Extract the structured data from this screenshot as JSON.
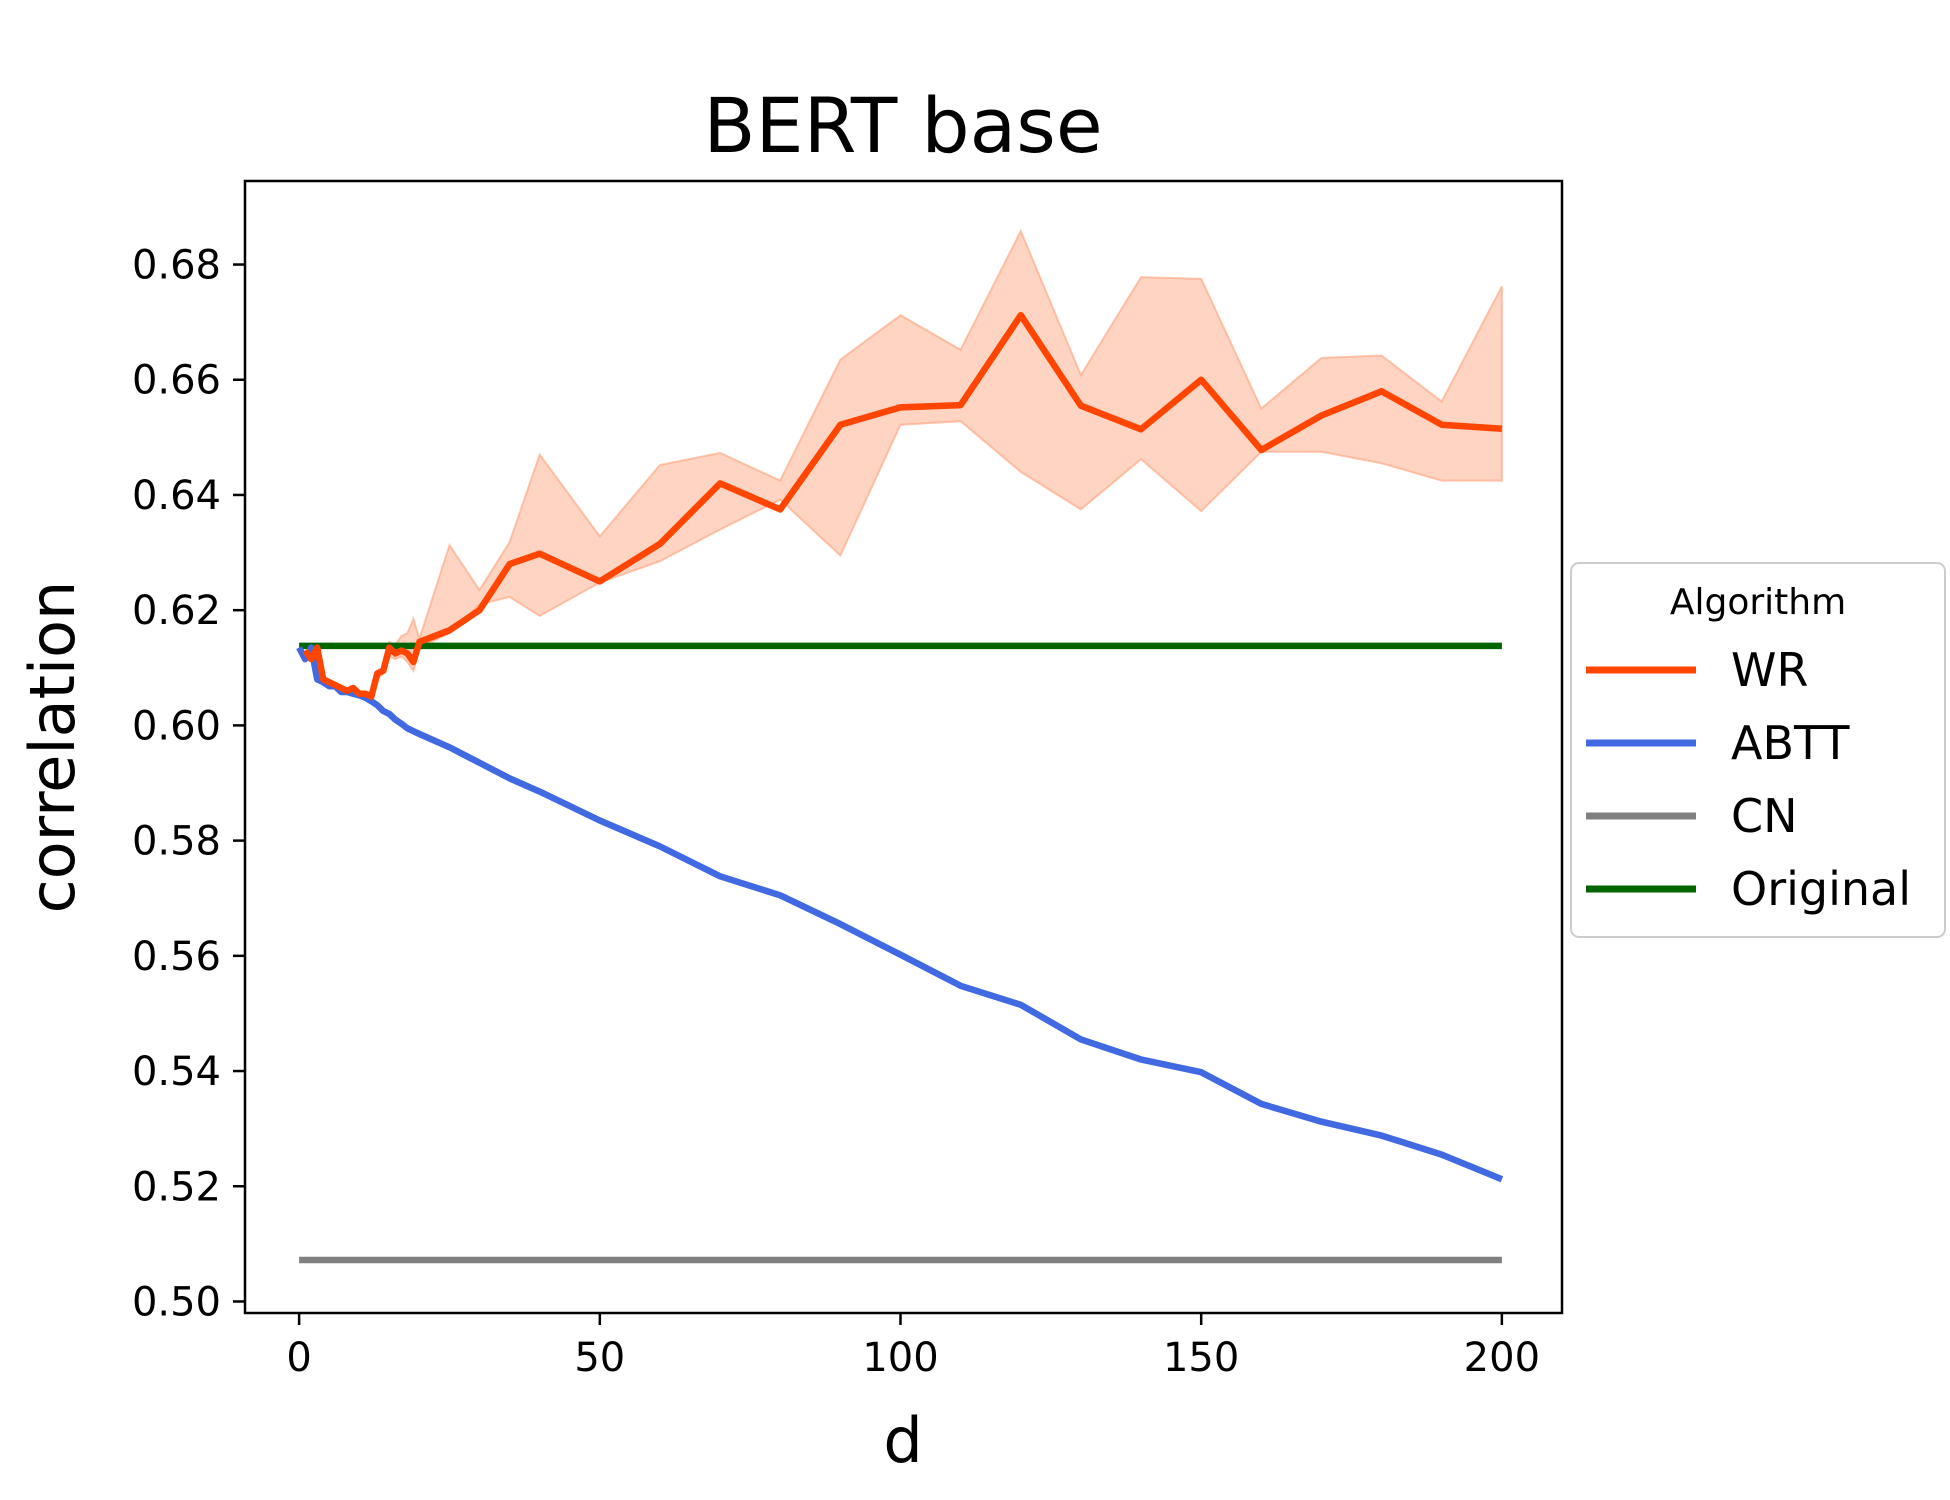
{
  "chart_data": {
    "type": "line",
    "title": "BERT base",
    "xlabel": "d",
    "ylabel": "correlation",
    "xlim": [
      -9,
      210
    ],
    "ylim": [
      0.498,
      0.6945
    ],
    "xticks": [
      0,
      50,
      100,
      150,
      200
    ],
    "yticks": [
      0.5,
      0.52,
      0.54,
      0.56,
      0.58,
      0.6,
      0.62,
      0.64,
      0.66,
      0.68
    ],
    "ytick_labels": [
      "0.50",
      "0.52",
      "0.54",
      "0.56",
      "0.58",
      "0.60",
      "0.62",
      "0.64",
      "0.66",
      "0.68"
    ],
    "xtick_labels": [
      "0",
      "50",
      "100",
      "150",
      "200"
    ],
    "legend": {
      "title": "Algorithm",
      "placement": "outside-right",
      "entries": [
        "WR",
        "ABTT",
        "CN",
        "Original"
      ]
    },
    "series": [
      {
        "name": "WR",
        "color": "#ff4500",
        "band_color": "#ffa07a",
        "x": [
          1,
          2,
          3,
          4,
          5,
          6,
          7,
          8,
          9,
          10,
          11,
          12,
          13,
          14,
          15,
          16,
          17,
          18,
          19,
          20,
          25,
          30,
          35,
          40,
          50,
          60,
          70,
          80,
          90,
          100,
          110,
          120,
          130,
          140,
          150,
          160,
          170,
          180,
          190,
          200
        ],
        "values": [
          0.613,
          0.6115,
          0.6135,
          0.608,
          0.6075,
          0.607,
          0.6065,
          0.606,
          0.6065,
          0.6055,
          0.6055,
          0.605,
          0.609,
          0.6095,
          0.6135,
          0.6125,
          0.613,
          0.6125,
          0.611,
          0.6145,
          0.6165,
          0.62,
          0.628,
          0.6298,
          0.625,
          0.6315,
          0.642,
          0.6375,
          0.6522,
          0.6552,
          0.6556,
          0.6712,
          0.6555,
          0.6514,
          0.66,
          0.6478,
          0.6538,
          0.658,
          0.6522,
          0.6515
        ],
        "lower": [
          0.613,
          0.6115,
          0.6135,
          0.608,
          0.6075,
          0.607,
          0.6065,
          0.606,
          0.6065,
          0.6055,
          0.6055,
          0.605,
          0.608,
          0.609,
          0.612,
          0.6115,
          0.612,
          0.611,
          0.6095,
          0.6135,
          0.616,
          0.621,
          0.6223,
          0.619,
          0.6248,
          0.6285,
          0.634,
          0.6392,
          0.6295,
          0.6522,
          0.6528,
          0.644,
          0.6375,
          0.6462,
          0.6372,
          0.6475,
          0.6475,
          0.6455,
          0.6425,
          0.6425
        ],
        "upper": [
          0.613,
          0.6115,
          0.6135,
          0.608,
          0.6075,
          0.607,
          0.6065,
          0.606,
          0.6068,
          0.6058,
          0.6058,
          0.6055,
          0.6095,
          0.61,
          0.6145,
          0.614,
          0.6155,
          0.616,
          0.6185,
          0.615,
          0.6313,
          0.6235,
          0.6318,
          0.647,
          0.6328,
          0.6452,
          0.6473,
          0.6425,
          0.6635,
          0.6712,
          0.6652,
          0.6858,
          0.6608,
          0.6778,
          0.6775,
          0.655,
          0.6638,
          0.6642,
          0.6562,
          0.6762
        ]
      },
      {
        "name": "ABTT",
        "color": "#4169e1",
        "x": [
          0,
          1,
          2,
          3,
          4,
          5,
          6,
          7,
          8,
          9,
          10,
          11,
          12,
          13,
          14,
          15,
          16,
          17,
          18,
          19,
          20,
          25,
          30,
          35,
          40,
          50,
          60,
          70,
          80,
          90,
          100,
          110,
          120,
          130,
          140,
          150,
          160,
          170,
          180,
          190,
          200
        ],
        "values": [
          0.6135,
          0.6115,
          0.6135,
          0.608,
          0.6075,
          0.6068,
          0.6068,
          0.6058,
          0.6058,
          0.6055,
          0.6052,
          0.6048,
          0.6042,
          0.6035,
          0.6025,
          0.602,
          0.601,
          0.6003,
          0.5995,
          0.599,
          0.5985,
          0.5962,
          0.5935,
          0.5908,
          0.5885,
          0.5835,
          0.579,
          0.5738,
          0.5705,
          0.5655,
          0.5602,
          0.5548,
          0.5515,
          0.5455,
          0.542,
          0.5398,
          0.5343,
          0.5312,
          0.5288,
          0.5255,
          0.5212
        ]
      },
      {
        "name": "CN",
        "color": "#808080",
        "x": [
          0,
          200
        ],
        "values": [
          0.5072,
          0.5072
        ]
      },
      {
        "name": "Original",
        "color": "#006400",
        "x": [
          0,
          200
        ],
        "values": [
          0.6138,
          0.6138
        ]
      }
    ]
  }
}
